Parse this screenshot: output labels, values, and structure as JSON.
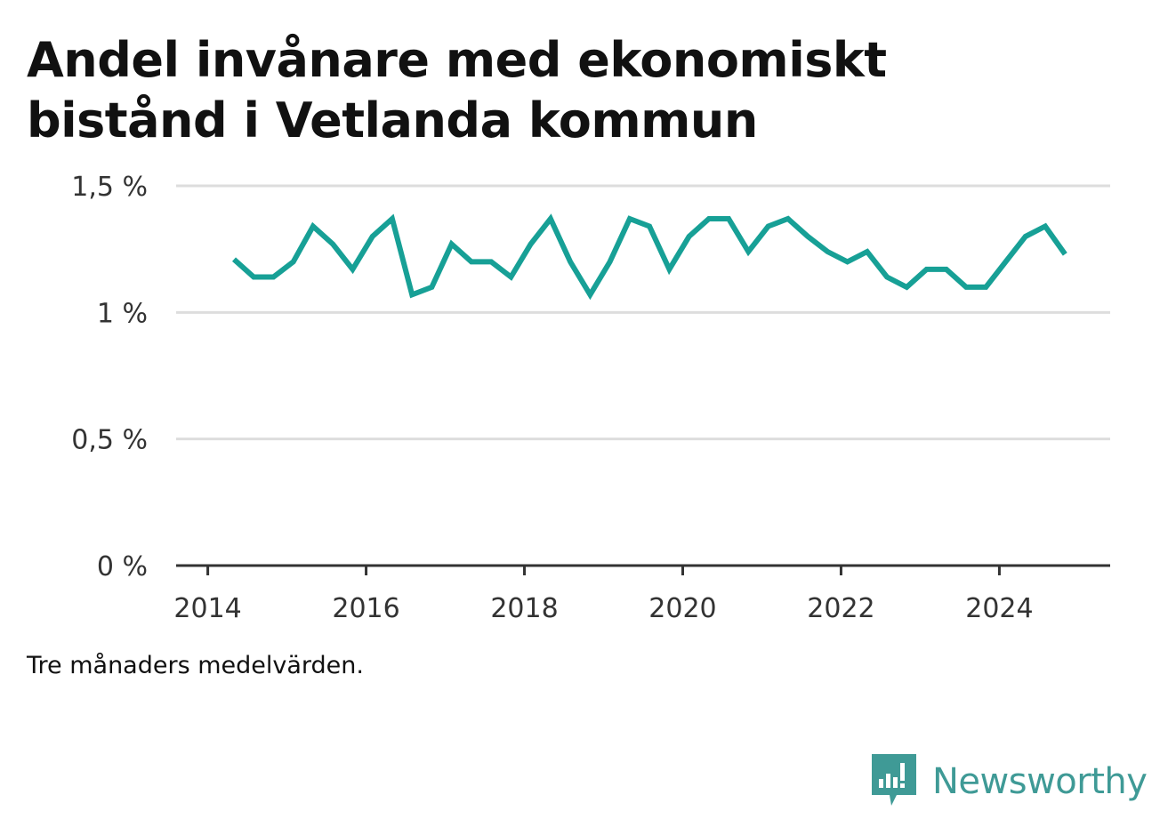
{
  "title_lines": [
    "Andel invånare med ekonomiskt",
    "bistånd i Vetlanda kommun"
  ],
  "footnote": "Tre månaders medelvärden.",
  "brand": "Newsworthy",
  "colors": {
    "line": "#17a096",
    "grid": "#dddddd",
    "axis": "#333333",
    "brand": "#3f9a96"
  },
  "chart_data": {
    "type": "line",
    "title": "Andel invånare med ekonomiskt bistånd i Vetlanda kommun",
    "xlabel": "",
    "ylabel": "",
    "xlim": [
      2013.6,
      2025.4
    ],
    "ylim": [
      0,
      1.5
    ],
    "y_ticks": [
      0,
      0.5,
      1,
      1.5
    ],
    "y_tick_labels": [
      "0 %",
      "0,5 %",
      "1 %",
      "1,5 %"
    ],
    "x_ticks": [
      2014,
      2016,
      2018,
      2020,
      2022,
      2024
    ],
    "x_tick_labels": [
      "2014",
      "2016",
      "2018",
      "2020",
      "2022",
      "2024"
    ],
    "grid": true,
    "x": [
      2014.33,
      2014.58,
      2014.83,
      2015.08,
      2015.33,
      2015.58,
      2015.83,
      2016.08,
      2016.33,
      2016.58,
      2016.83,
      2017.08,
      2017.33,
      2017.58,
      2017.83,
      2018.08,
      2018.33,
      2018.58,
      2018.83,
      2019.08,
      2019.33,
      2019.58,
      2019.83,
      2020.08,
      2020.33,
      2020.58,
      2020.83,
      2021.08,
      2021.33,
      2021.58,
      2021.83,
      2022.08,
      2022.33,
      2022.58,
      2022.83,
      2023.08,
      2023.33,
      2023.58,
      2023.83,
      2024.08,
      2024.33,
      2024.58,
      2024.83
    ],
    "y": [
      1.21,
      1.14,
      1.14,
      1.2,
      1.34,
      1.27,
      1.17,
      1.3,
      1.37,
      1.07,
      1.1,
      1.27,
      1.2,
      1.2,
      1.14,
      1.27,
      1.37,
      1.2,
      1.07,
      1.2,
      1.37,
      1.34,
      1.17,
      1.3,
      1.37,
      1.37,
      1.24,
      1.34,
      1.37,
      1.3,
      1.24,
      1.2,
      1.24,
      1.14,
      1.1,
      1.17,
      1.17,
      1.1,
      1.1,
      1.2,
      1.3,
      1.34,
      1.23
    ]
  }
}
